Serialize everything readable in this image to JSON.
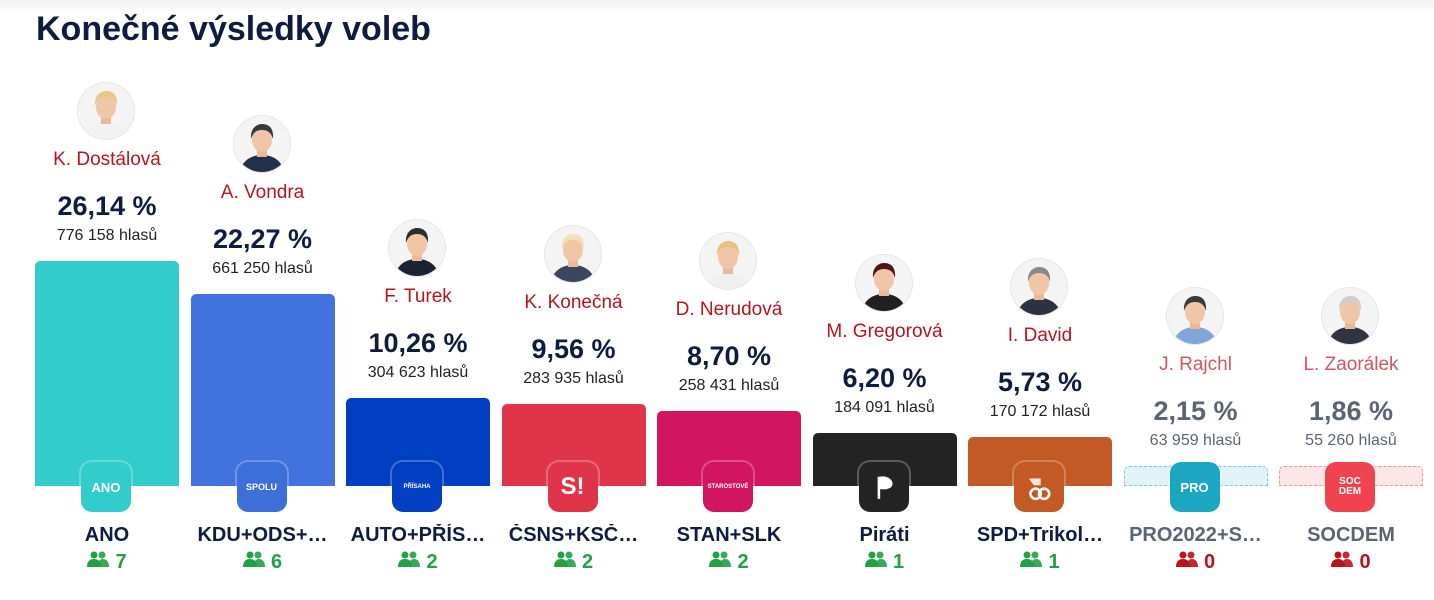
{
  "title": "Konečné výsledky voleb",
  "colors": {
    "seats_positive": "#22a046",
    "seats_zero": "#b8141c",
    "candidate": "#b8141c",
    "text_dark": "#0f1c3f"
  },
  "chart_data": {
    "type": "bar",
    "categories": [
      "ANO",
      "KDU+ODS+…",
      "AUTO+PŘÍS…",
      "ČSNS+KSČ…",
      "STAN+SLK",
      "Piráti",
      "SPD+Trikol…",
      "PRO2022+S…",
      "SOCDEM"
    ],
    "values": [
      26.14,
      22.27,
      10.26,
      9.56,
      8.7,
      6.2,
      5.73,
      2.15,
      1.86
    ],
    "ylim": [
      0,
      30
    ],
    "bars": [
      {
        "party": "ANO",
        "candidate": "K. Dostálová",
        "percent_label": "26,14 %",
        "percent": 26.14,
        "votes_label": "776 158 hlasů",
        "seats": "7",
        "color": "#33cccc",
        "logo_text": "ANO",
        "logo_bg": "#33cccc",
        "logo_icon": "ano-logo-icon",
        "avatar_icon": "dostalova-portrait-icon",
        "hair": "#e7c889",
        "clothes": "#f2f2f2",
        "faded": false
      },
      {
        "party": "KDU+ODS+…",
        "candidate": "A. Vondra",
        "percent_label": "22,27 %",
        "percent": 22.27,
        "votes_label": "661 250 hlasů",
        "seats": "6",
        "color": "#4272de",
        "logo_text": "SPOLU",
        "logo_bg": "#3d6fd9",
        "logo_icon": "spolu-logo-icon",
        "avatar_icon": "vondra-portrait-icon",
        "hair": "#3a3a3a",
        "clothes": "#23304a",
        "faded": false
      },
      {
        "party": "AUTO+PŘÍS…",
        "candidate": "F. Turek",
        "percent_label": "10,26 %",
        "percent": 10.26,
        "votes_label": "304 623 hlasů",
        "seats": "2",
        "color": "#003fc2",
        "logo_text": "PŘÍSAHA",
        "logo_bg": "#003fc2",
        "logo_icon": "prisaha-logo-icon",
        "avatar_icon": "turek-portrait-icon",
        "hair": "#2d2d2d",
        "clothes": "#1b2233",
        "faded": false
      },
      {
        "party": "ČSNS+KSČ…",
        "candidate": "K. Konečná",
        "percent_label": "9,56 %",
        "percent": 9.56,
        "votes_label": "283 935 hlasů",
        "seats": "2",
        "color": "#e0344a",
        "logo_text": "S!",
        "logo_bg": "#e0344a",
        "logo_icon": "stacilo-logo-icon",
        "avatar_icon": "konecna-portrait-icon",
        "hair": "#f0e2b8",
        "clothes": "#3a4560",
        "faded": false
      },
      {
        "party": "STAN+SLK",
        "candidate": "D. Nerudová",
        "percent_label": "8,70 %",
        "percent": 8.7,
        "votes_label": "258 431 hlasů",
        "seats": "2",
        "color": "#d3145f",
        "logo_text": "STAROSTOVÉ",
        "logo_bg": "#d3145f",
        "logo_icon": "starostove-logo-icon",
        "avatar_icon": "nerudova-portrait-icon",
        "hair": "#e6c37a",
        "clothes": "#f0f0f0",
        "faded": false
      },
      {
        "party": "Piráti",
        "candidate": "M. Gregorová",
        "percent_label": "6,20 %",
        "percent": 6.2,
        "votes_label": "184 091 hlasů",
        "seats": "1",
        "color": "#232323",
        "logo_text": "",
        "logo_bg": "#232323",
        "logo_icon": "pirate-flag-logo-icon",
        "avatar_icon": "gregorova-portrait-icon",
        "hair": "#4a1818",
        "clothes": "#202020",
        "faded": false
      },
      {
        "party": "SPD+Trikol…",
        "candidate": "I. David",
        "percent_label": "5,73 %",
        "percent": 5.73,
        "votes_label": "170 172 hlasů",
        "seats": "1",
        "color": "#c35a26",
        "logo_text": "",
        "logo_bg": "#c35a26",
        "logo_icon": "spd-logo-icon",
        "avatar_icon": "david-portrait-icon",
        "hair": "#8a8a8a",
        "clothes": "#2c3240",
        "faded": false
      },
      {
        "party": "PRO2022+S…",
        "candidate": "J. Rajchl",
        "percent_label": "2,15 %",
        "percent": 2.15,
        "votes_label": "63 959 hlasů",
        "seats": "0",
        "color": "#1ba6c2",
        "logo_text": "PRO",
        "logo_bg": "#1ba6c2",
        "logo_icon": "pro-logo-icon",
        "avatar_icon": "rajchl-portrait-icon",
        "hair": "#3a3a3a",
        "clothes": "#7ea6d8",
        "faded": true
      },
      {
        "party": "SOCDEM",
        "candidate": "L. Zaorálek",
        "percent_label": "1,86 %",
        "percent": 1.86,
        "votes_label": "55 260 hlasů",
        "seats": "0",
        "color": "#f0434f",
        "logo_text": "SOC DEM",
        "logo_bg": "#f0434f",
        "logo_icon": "socdem-logo-icon",
        "avatar_icon": "zaoralek-portrait-icon",
        "hair": "#cfcfcf",
        "clothes": "#2f3440",
        "faded": true
      }
    ]
  }
}
